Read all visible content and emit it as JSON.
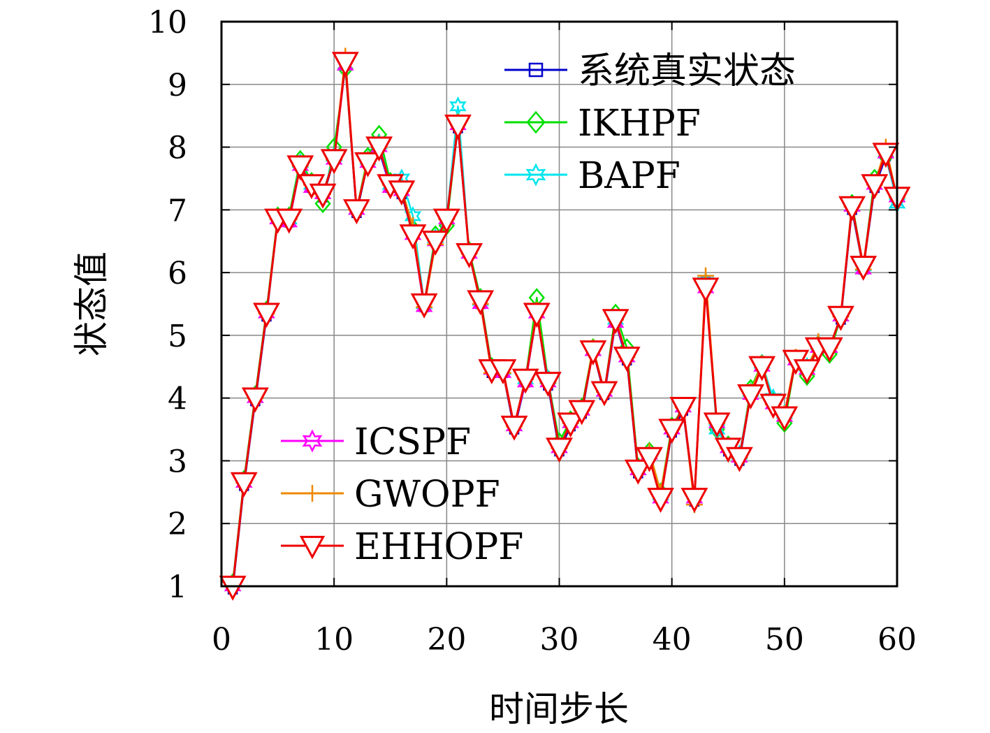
{
  "chart_data": {
    "type": "line",
    "xlabel": "时间步长",
    "ylabel": "状态值",
    "xlim": [
      0,
      60
    ],
    "ylim": [
      1,
      10
    ],
    "xticks": [
      0,
      10,
      20,
      30,
      40,
      50,
      60
    ],
    "yticks": [
      1,
      2,
      3,
      4,
      5,
      6,
      7,
      8,
      9,
      10
    ],
    "grid": true,
    "x": [
      1,
      2,
      3,
      4,
      5,
      6,
      7,
      8,
      9,
      10,
      11,
      12,
      13,
      14,
      15,
      16,
      17,
      18,
      19,
      20,
      21,
      22,
      23,
      24,
      25,
      26,
      27,
      28,
      29,
      30,
      31,
      32,
      33,
      34,
      35,
      36,
      37,
      38,
      39,
      40,
      41,
      42,
      43,
      44,
      45,
      46,
      47,
      48,
      49,
      50,
      51,
      52,
      53,
      54,
      55,
      56,
      57,
      58,
      59,
      60
    ],
    "series": [
      {
        "name": "系统真实状态",
        "color": "#0000CC",
        "marker": "square",
        "values": [
          0.95,
          2.6,
          3.95,
          5.3,
          6.85,
          6.8,
          7.7,
          7.35,
          7.2,
          7.8,
          9.3,
          6.95,
          7.75,
          7.95,
          7.35,
          7.25,
          6.6,
          5.45,
          6.5,
          6.9,
          8.3,
          6.3,
          5.5,
          4.4,
          4.4,
          3.5,
          4.25,
          5.35,
          4.2,
          3.15,
          3.55,
          3.75,
          4.75,
          4.05,
          5.2,
          4.6,
          2.8,
          3.05,
          2.4,
          3.45,
          3.8,
          2.35,
          5.85,
          3.55,
          3.15,
          3.0,
          4.05,
          4.5,
          3.9,
          3.7,
          4.6,
          4.45,
          4.8,
          4.8,
          5.25,
          7.0,
          6.05,
          7.35,
          7.85,
          7.15
        ]
      },
      {
        "name": "IKHPF",
        "color": "#00E000",
        "marker": "diamond",
        "values": [
          1.05,
          2.7,
          4.05,
          5.4,
          6.9,
          6.9,
          7.8,
          7.45,
          7.1,
          8.0,
          9.25,
          7.0,
          7.85,
          8.2,
          7.45,
          7.35,
          6.7,
          5.5,
          6.6,
          6.75,
          8.35,
          6.35,
          5.6,
          4.5,
          4.45,
          3.55,
          4.3,
          5.6,
          4.3,
          3.3,
          3.65,
          3.85,
          4.8,
          4.1,
          5.35,
          4.8,
          2.9,
          3.15,
          2.5,
          3.55,
          3.85,
          2.4,
          5.8,
          3.5,
          3.25,
          3.05,
          4.15,
          4.55,
          3.95,
          3.6,
          4.6,
          4.35,
          4.85,
          4.7,
          5.3,
          7.1,
          6.1,
          7.5,
          7.85,
          7.2
        ]
      },
      {
        "name": "BAPF",
        "color": "#00E5EE",
        "marker": "star",
        "values": [
          1.0,
          2.65,
          4.0,
          5.35,
          6.85,
          6.85,
          7.75,
          7.4,
          7.25,
          7.85,
          9.3,
          7.0,
          7.8,
          8.05,
          7.4,
          7.5,
          6.9,
          5.5,
          6.55,
          6.85,
          8.65,
          6.3,
          5.55,
          4.45,
          4.45,
          3.55,
          4.3,
          5.35,
          4.3,
          3.2,
          3.6,
          3.8,
          4.75,
          4.1,
          5.25,
          4.65,
          2.85,
          3.1,
          2.45,
          3.5,
          3.85,
          2.4,
          5.85,
          3.5,
          3.2,
          3.1,
          4.1,
          4.55,
          4.0,
          3.75,
          4.6,
          4.5,
          4.85,
          4.8,
          5.3,
          7.05,
          6.1,
          7.4,
          7.9,
          7.1
        ]
      },
      {
        "name": "ICSPF",
        "color": "#FF00FF",
        "marker": "star",
        "values": [
          1.0,
          2.65,
          4.0,
          5.35,
          6.85,
          6.8,
          7.7,
          7.35,
          7.25,
          7.8,
          9.3,
          7.0,
          7.75,
          8.0,
          7.35,
          7.3,
          6.6,
          5.45,
          6.5,
          6.85,
          8.35,
          6.3,
          5.5,
          4.45,
          4.4,
          3.55,
          4.25,
          5.35,
          4.25,
          3.2,
          3.6,
          3.8,
          4.75,
          4.1,
          5.2,
          4.65,
          2.85,
          3.1,
          2.4,
          3.5,
          3.85,
          2.4,
          5.75,
          3.6,
          3.2,
          3.05,
          4.05,
          4.5,
          3.9,
          3.7,
          4.6,
          4.45,
          4.8,
          4.8,
          5.3,
          7.05,
          6.05,
          7.4,
          7.9,
          7.2
        ]
      },
      {
        "name": "GWOPF",
        "color": "#EE8800",
        "marker": "plus",
        "values": [
          1.0,
          2.65,
          4.0,
          5.35,
          6.85,
          6.85,
          7.7,
          7.4,
          7.25,
          7.8,
          9.45,
          7.0,
          7.8,
          8.0,
          7.4,
          7.3,
          6.75,
          5.45,
          6.45,
          6.85,
          8.4,
          6.3,
          5.5,
          4.4,
          4.4,
          3.55,
          4.3,
          5.4,
          4.25,
          3.2,
          3.6,
          3.8,
          4.8,
          4.1,
          5.25,
          4.65,
          2.85,
          3.15,
          2.5,
          3.5,
          3.85,
          2.3,
          5.95,
          3.6,
          3.2,
          3.05,
          4.1,
          4.55,
          3.9,
          3.75,
          4.65,
          4.45,
          4.9,
          4.8,
          5.3,
          7.05,
          6.05,
          7.4,
          8.0,
          7.2
        ]
      },
      {
        "name": "EHHOPF",
        "color": "#EE0000",
        "marker": "triangle-down",
        "values": [
          1.0,
          2.65,
          4.0,
          5.35,
          6.85,
          6.85,
          7.7,
          7.4,
          7.25,
          7.8,
          9.35,
          7.0,
          7.75,
          8.0,
          7.4,
          7.3,
          6.6,
          5.5,
          6.5,
          6.85,
          8.35,
          6.3,
          5.55,
          4.45,
          4.45,
          3.55,
          4.3,
          5.35,
          4.25,
          3.2,
          3.6,
          3.8,
          4.75,
          4.1,
          5.25,
          4.65,
          2.85,
          3.05,
          2.4,
          3.5,
          3.85,
          2.4,
          5.75,
          3.6,
          3.2,
          3.05,
          4.05,
          4.5,
          3.9,
          3.7,
          4.6,
          4.45,
          4.8,
          4.8,
          5.3,
          7.05,
          6.1,
          7.4,
          7.9,
          7.2
        ]
      }
    ],
    "legends": [
      {
        "position": "top-right",
        "entries": [
          0,
          1,
          2
        ]
      },
      {
        "position": "bottom-left",
        "entries": [
          3,
          4,
          5
        ]
      }
    ]
  }
}
